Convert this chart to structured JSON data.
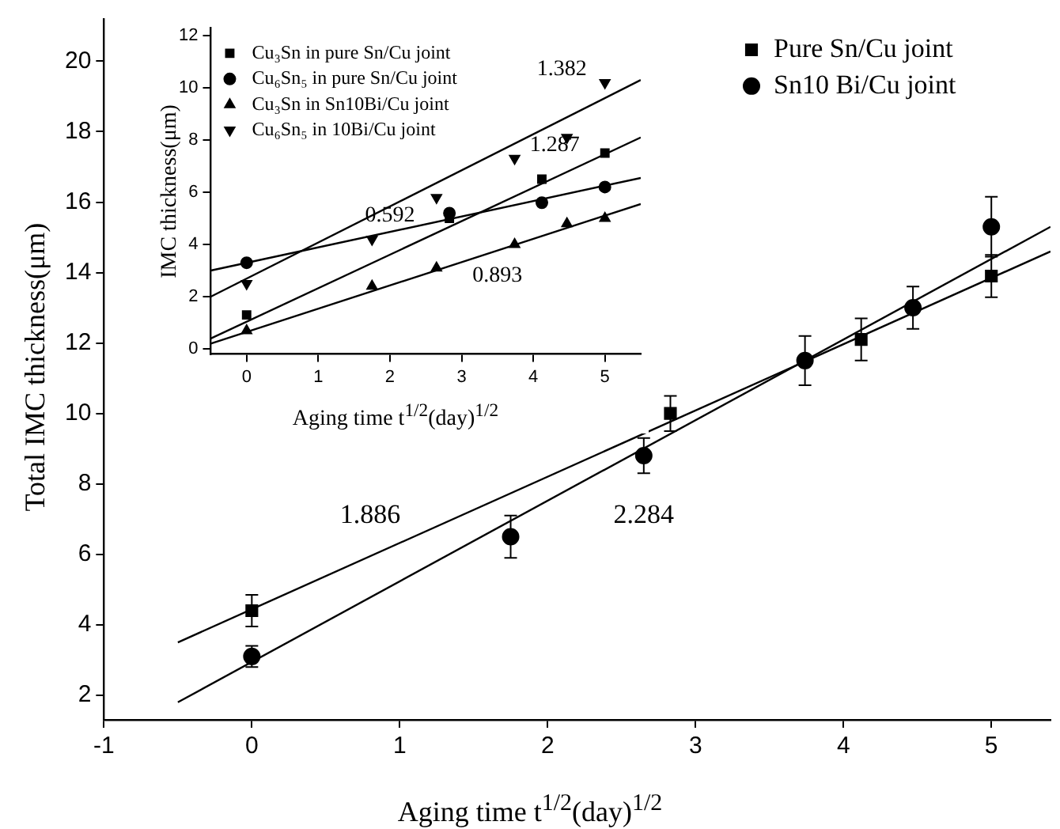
{
  "chart_data": [
    {
      "type": "scatter",
      "xlabel": "Aging time t$^{1/2}$(day)$^{1/2}$",
      "ylabel": "Total IMC thickness(μm)",
      "xlim": [
        -1,
        5.4
      ],
      "ylim": [
        1.3,
        21.2
      ],
      "xticks": [
        -1,
        0,
        1,
        2,
        3,
        4,
        5
      ],
      "yticks": [
        2,
        4,
        6,
        8,
        10,
        12,
        14,
        16,
        18,
        20
      ],
      "legend": "top right",
      "grid": false,
      "series": [
        {
          "name": "Pure Sn/Cu joint",
          "color": "#000000",
          "marker": "square",
          "x": [
            0,
            2.83,
            4.12,
            5
          ],
          "values": [
            4.4,
            10.0,
            12.1,
            13.9
          ],
          "errors": [
            0.45,
            0.5,
            0.6,
            0.6
          ]
        },
        {
          "name": "Sn10 Bi/Cu joint",
          "color": "#000000",
          "marker": "circle",
          "x": [
            0,
            1.75,
            2.65,
            3.74,
            4.47,
            5
          ],
          "values": [
            3.1,
            6.5,
            8.8,
            11.5,
            13.0,
            15.3
          ],
          "errors": [
            0.3,
            0.6,
            0.5,
            0.7,
            0.6,
            0.85
          ]
        },
        {
          "type": "line",
          "color": "#000000",
          "marker": "none",
          "x": [
            -0.5,
            5.4
          ],
          "values": [
            3.5,
            14.6
          ]
        },
        {
          "type": "line",
          "color": "#000000",
          "marker": "none",
          "x": [
            -0.5,
            5.4
          ],
          "values": [
            1.8,
            15.3
          ]
        }
      ],
      "annotations": [
        "1.886",
        "2.284"
      ]
    },
    {
      "type": "scatter",
      "xlabel": "Aging time t$^{1/2}$(day)$^{1/2}$",
      "ylabel": "IMC thickness(μm)",
      "xlim": [
        -0.5,
        5.5
      ],
      "ylim": [
        -0.2,
        12.3
      ],
      "xticks": [
        0,
        1,
        2,
        3,
        4,
        5
      ],
      "yticks": [
        0,
        2,
        4,
        6,
        8,
        10,
        12
      ],
      "legend": "top left",
      "grid": false,
      "series": [
        {
          "name": "Cu₃Sn in pure Sn/Cu joint",
          "color": "#000000",
          "marker": "square",
          "x": [
            0,
            2.83,
            4.12,
            5
          ],
          "values": [
            1.3,
            5.0,
            6.5,
            7.5
          ]
        },
        {
          "name": "Cu₆Sn₅ in pure Sn/Cu joint",
          "color": "#000000",
          "marker": "circle",
          "x": [
            0,
            2.83,
            4.12,
            5
          ],
          "values": [
            3.3,
            5.2,
            5.6,
            6.2
          ]
        },
        {
          "name": "Cu₃Sn in Sn10Bi/Cu joint",
          "color": "#000000",
          "marker": "triangle",
          "x": [
            0,
            1.75,
            2.65,
            3.74,
            4.47,
            5
          ],
          "values": [
            0.7,
            2.4,
            3.1,
            4.0,
            4.8,
            5.0
          ]
        },
        {
          "name": "Cu₆Sn₅ in 10Bi/Cu joint",
          "color": "#000000",
          "marker": "triangle-down",
          "x": [
            0,
            1.75,
            2.65,
            3.74,
            4.47,
            5
          ],
          "values": [
            2.5,
            4.2,
            5.8,
            7.3,
            8.1,
            10.2
          ]
        },
        {
          "type": "line",
          "color": "#000000",
          "marker": "none",
          "x": [
            -0.5,
            5.5
          ],
          "values": [
            2.0,
            10.3
          ]
        },
        {
          "type": "line",
          "color": "#000000",
          "marker": "none",
          "x": [
            -0.5,
            5.5
          ],
          "values": [
            0.4,
            8.1
          ]
        },
        {
          "type": "line",
          "color": "#000000",
          "marker": "none",
          "x": [
            -0.5,
            5.5
          ],
          "values": [
            3.0,
            6.55
          ]
        },
        {
          "type": "line",
          "color": "#000000",
          "marker": "none",
          "x": [
            -0.5,
            5.5
          ],
          "values": [
            0.2,
            5.55
          ]
        }
      ],
      "annotations": [
        "1.382",
        "1.287",
        "0.592",
        "0.893"
      ]
    }
  ]
}
